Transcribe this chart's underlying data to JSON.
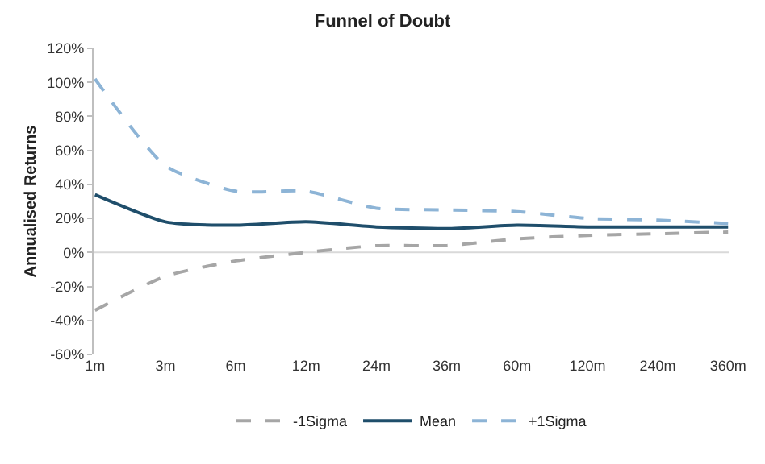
{
  "chart_data": {
    "type": "line",
    "title": "Funnel of Doubt",
    "ylabel": "Annualised Returns",
    "categories": [
      "1m",
      "3m",
      "6m",
      "12m",
      "24m",
      "36m",
      "60m",
      "120m",
      "240m",
      "360m"
    ],
    "series": [
      {
        "name": "-1Sigma",
        "color": "#a6a6a6",
        "line_style": "dashed",
        "values": [
          -34,
          -14,
          -5,
          0,
          4,
          4,
          8,
          10,
          11,
          12
        ]
      },
      {
        "name": "Mean",
        "color": "#1f4e6b",
        "line_style": "solid",
        "values": [
          34,
          18,
          16,
          18,
          15,
          14,
          16,
          15,
          15,
          15
        ]
      },
      {
        "name": "+1Sigma",
        "color": "#8db4d6",
        "line_style": "dashed",
        "values": [
          102,
          51,
          36,
          36,
          26,
          25,
          24,
          20,
          19,
          17
        ]
      }
    ],
    "ylim": [
      -60,
      120
    ],
    "yticks": [
      {
        "value": -60,
        "label": "-60%"
      },
      {
        "value": -40,
        "label": "-40%"
      },
      {
        "value": -20,
        "label": "-20%"
      },
      {
        "value": 0,
        "label": "0%"
      },
      {
        "value": 20,
        "label": "20%"
      },
      {
        "value": 40,
        "label": "40%"
      },
      {
        "value": 60,
        "label": "60%"
      },
      {
        "value": 80,
        "label": "80%"
      },
      {
        "value": 100,
        "label": "100%"
      },
      {
        "value": 120,
        "label": "120%"
      }
    ],
    "ref_lines": [
      {
        "axis": "y",
        "value": 0,
        "color": "#d9d9d9"
      }
    ],
    "grid": false,
    "legend": "bottom",
    "marker": "none"
  }
}
